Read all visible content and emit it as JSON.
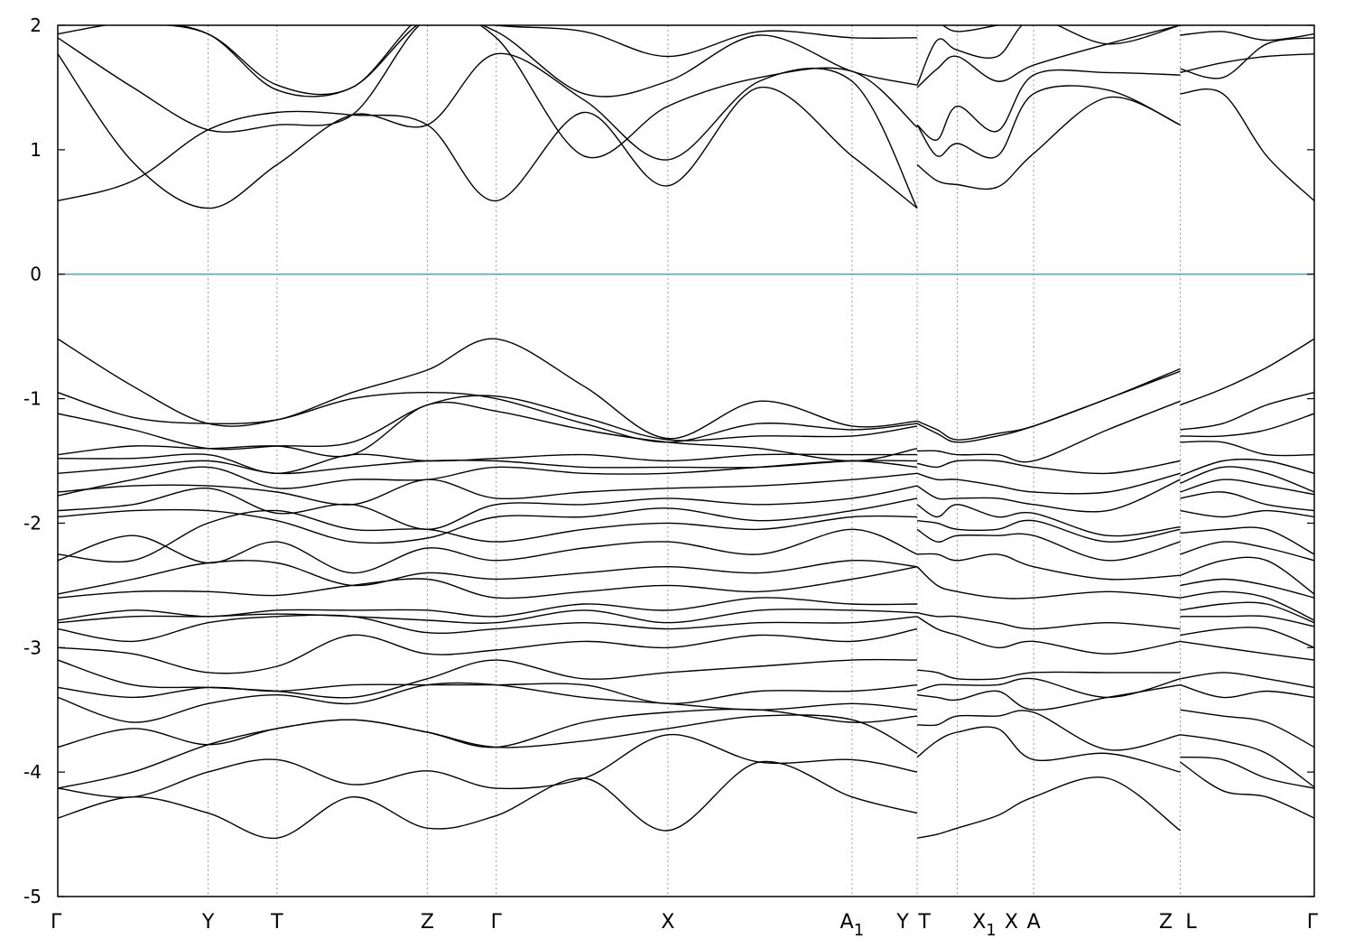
{
  "chart_data": {
    "type": "line",
    "title": "",
    "xlabel": "",
    "ylabel": "",
    "ylim": [
      -5,
      2
    ],
    "y_ticks": [
      -5,
      -4,
      -3,
      -2,
      -1,
      0,
      1,
      2
    ],
    "fermi_level": 0,
    "colors": {
      "bands": "#000000",
      "fermi": "#4fa8c8",
      "kpath": "#9a9a9a"
    },
    "kpoints": [
      {
        "label": "Γ",
        "sub": "",
        "x": 0.0
      },
      {
        "label": "Y",
        "sub": "",
        "x": 1.2
      },
      {
        "label": "T",
        "sub": "",
        "x": 1.75
      },
      {
        "label": "Z",
        "sub": "",
        "x": 2.95
      },
      {
        "label": "Γ",
        "sub": "",
        "x": 3.5
      },
      {
        "label": "X",
        "sub": "",
        "x": 4.87
      },
      {
        "label": "A",
        "sub": "1",
        "x": 6.34
      },
      {
        "label": "Y",
        "sub": "",
        "x": 6.86
      },
      {
        "label": "T",
        "sub": "",
        "x": 6.86
      },
      {
        "label": "X",
        "sub": "1",
        "x": 7.18
      },
      {
        "label": "X",
        "sub": "",
        "x": 7.18
      },
      {
        "label": "A",
        "sub": "",
        "x": 7.79
      },
      {
        "label": "Z",
        "sub": "",
        "x": 8.96
      },
      {
        "label": "L",
        "sub": "",
        "x": 8.96
      },
      {
        "label": "Γ",
        "sub": "",
        "x": 10.03
      }
    ],
    "segments": [
      {
        "name": "Γ-Y-T-Z-Γ-X-A1-Y",
        "x": [
          0.0,
          0.6,
          1.2,
          1.75,
          2.35,
          2.95,
          3.5,
          4.2,
          4.87,
          5.6,
          6.34,
          6.86
        ],
        "bands": [
          [
            -4.37,
            -4.2,
            -4.33,
            -4.53,
            -4.2,
            -4.45,
            -4.35,
            -4.05,
            -4.47,
            -3.92,
            -4.2,
            -4.33
          ],
          [
            -4.13,
            -4.2,
            -4.0,
            -3.9,
            -4.1,
            -3.99,
            -4.13,
            -4.05,
            -3.7,
            -3.92,
            -3.9,
            -4.0
          ],
          [
            -4.13,
            -4.0,
            -3.78,
            -3.65,
            -3.58,
            -3.68,
            -3.8,
            -3.75,
            -3.65,
            -3.55,
            -3.58,
            -3.85
          ],
          [
            -3.8,
            -3.65,
            -3.78,
            -3.65,
            -3.58,
            -3.68,
            -3.8,
            -3.6,
            -3.52,
            -3.5,
            -3.6,
            -3.55
          ],
          [
            -3.4,
            -3.6,
            -3.45,
            -3.38,
            -3.45,
            -3.3,
            -3.3,
            -3.4,
            -3.45,
            -3.5,
            -3.45,
            -3.5
          ],
          [
            -3.32,
            -3.4,
            -3.32,
            -3.35,
            -3.3,
            -3.3,
            -3.3,
            -3.3,
            -3.45,
            -3.35,
            -3.35,
            -3.3
          ],
          [
            -3.1,
            -3.3,
            -3.32,
            -3.35,
            -3.4,
            -3.25,
            -3.1,
            -3.25,
            -3.2,
            -3.15,
            -3.1,
            -3.1
          ],
          [
            -3.0,
            -3.05,
            -3.2,
            -3.15,
            -2.9,
            -3.05,
            -3.02,
            -2.95,
            -3.0,
            -2.9,
            -2.95,
            -2.85
          ],
          [
            -2.85,
            -2.95,
            -2.8,
            -2.75,
            -2.75,
            -2.88,
            -2.85,
            -2.8,
            -2.85,
            -2.8,
            -2.8,
            -2.75
          ],
          [
            -2.8,
            -2.75,
            -2.75,
            -2.73,
            -2.75,
            -2.78,
            -2.8,
            -2.7,
            -2.8,
            -2.7,
            -2.7,
            -2.72
          ],
          [
            -2.78,
            -2.7,
            -2.75,
            -2.7,
            -2.7,
            -2.7,
            -2.75,
            -2.65,
            -2.7,
            -2.6,
            -2.65,
            -2.65
          ],
          [
            -2.6,
            -2.55,
            -2.55,
            -2.58,
            -2.5,
            -2.45,
            -2.6,
            -2.55,
            -2.5,
            -2.55,
            -2.45,
            -2.35
          ],
          [
            -2.57,
            -2.45,
            -2.32,
            -2.32,
            -2.5,
            -2.4,
            -2.45,
            -2.4,
            -2.35,
            -2.4,
            -2.3,
            -2.35
          ],
          [
            -2.3,
            -2.1,
            -2.32,
            -2.15,
            -2.4,
            -2.2,
            -2.3,
            -2.2,
            -2.15,
            -2.25,
            -2.05,
            -2.25
          ],
          [
            -2.25,
            -2.3,
            -2.0,
            -1.9,
            -2.05,
            -2.05,
            -2.15,
            -2.05,
            -2.0,
            -2.05,
            -1.95,
            -1.95
          ],
          [
            -1.95,
            -1.9,
            -1.9,
            -1.98,
            -2.15,
            -2.12,
            -1.95,
            -1.95,
            -1.88,
            -1.98,
            -1.9,
            -1.8
          ],
          [
            -1.9,
            -1.85,
            -1.72,
            -1.92,
            -1.85,
            -2.05,
            -1.85,
            -1.85,
            -1.8,
            -1.85,
            -1.8,
            -1.7
          ],
          [
            -1.75,
            -1.7,
            -1.7,
            -1.75,
            -1.85,
            -1.65,
            -1.8,
            -1.75,
            -1.72,
            -1.7,
            -1.65,
            -1.6
          ],
          [
            -1.78,
            -1.65,
            -1.55,
            -1.72,
            -1.65,
            -1.65,
            -1.55,
            -1.6,
            -1.6,
            -1.55,
            -1.5,
            -1.55
          ],
          [
            -1.6,
            -1.55,
            -1.5,
            -1.6,
            -1.55,
            -1.5,
            -1.5,
            -1.55,
            -1.55,
            -1.55,
            -1.5,
            -1.5
          ],
          [
            -1.48,
            -1.48,
            -1.45,
            -1.6,
            -1.45,
            -1.5,
            -1.48,
            -1.45,
            -1.5,
            -1.45,
            -1.45,
            -1.45
          ],
          [
            -1.45,
            -1.38,
            -1.4,
            -1.38,
            -1.45,
            -1.05,
            -1.1,
            -1.25,
            -1.35,
            -1.4,
            -1.5,
            -1.4
          ],
          [
            -1.12,
            -1.25,
            -1.4,
            -1.38,
            -1.35,
            -1.05,
            -0.98,
            -1.15,
            -1.33,
            -1.3,
            -1.3,
            -1.22
          ],
          [
            -0.95,
            -1.15,
            -1.2,
            -1.17,
            -1.0,
            -0.95,
            -1.0,
            -1.2,
            -1.35,
            -1.2,
            -1.25,
            -1.2
          ],
          [
            -0.52,
            -0.9,
            -1.2,
            -1.17,
            -0.95,
            -0.77,
            -0.52,
            -0.9,
            -1.32,
            -1.02,
            -1.22,
            -1.18
          ],
          [
            0.59,
            0.75,
            1.16,
            1.3,
            1.28,
            1.2,
            0.59,
            1.3,
            0.71,
            1.5,
            0.95,
            0.53
          ],
          [
            1.77,
            0.9,
            0.53,
            0.88,
            1.28,
            1.2,
            1.77,
            1.4,
            0.92,
            1.55,
            1.55,
            0.53
          ],
          [
            1.9,
            1.5,
            1.16,
            1.2,
            1.28,
            2.05,
            1.9,
            0.95,
            1.35,
            1.58,
            1.63,
            1.18
          ],
          [
            1.93,
            2.02,
            1.93,
            1.48,
            1.5,
            2.05,
            1.95,
            1.45,
            1.55,
            1.92,
            1.63,
            1.52
          ],
          [
            2.05,
            2.02,
            1.93,
            1.52,
            1.5,
            2.1,
            2.0,
            1.95,
            1.75,
            1.95,
            1.9,
            1.9
          ]
        ]
      },
      {
        "name": "T-X1|X-A-Z",
        "x": [
          6.86,
          7.02,
          7.18,
          7.5,
          7.79,
          8.38,
          8.96
        ],
        "bands": [
          [
            -4.53,
            -4.5,
            -4.45,
            -4.35,
            -4.2,
            -4.05,
            -4.47
          ],
          [
            -3.88,
            -3.75,
            -3.68,
            -3.65,
            -3.9,
            -3.85,
            -4.0
          ],
          [
            -3.62,
            -3.62,
            -3.55,
            -3.55,
            -3.52,
            -3.82,
            -3.7
          ],
          [
            -3.38,
            -3.4,
            -3.42,
            -3.35,
            -3.5,
            -3.4,
            -3.3
          ],
          [
            -3.35,
            -3.3,
            -3.3,
            -3.3,
            -3.25,
            -3.4,
            -3.25
          ],
          [
            -3.18,
            -3.2,
            -3.25,
            -3.25,
            -3.2,
            -3.2,
            -3.2
          ],
          [
            -2.75,
            -2.85,
            -2.9,
            -3.0,
            -2.95,
            -3.05,
            -2.95
          ],
          [
            -2.72,
            -2.75,
            -2.75,
            -2.8,
            -2.85,
            -2.8,
            -2.85
          ],
          [
            -2.35,
            -2.5,
            -2.55,
            -2.6,
            -2.6,
            -2.55,
            -2.6
          ],
          [
            -2.25,
            -2.25,
            -2.3,
            -2.25,
            -2.35,
            -2.45,
            -2.42
          ],
          [
            -2.05,
            -2.15,
            -2.1,
            -2.1,
            -2.1,
            -2.3,
            -2.15
          ],
          [
            -1.98,
            -2.0,
            -2.05,
            -2.05,
            -1.98,
            -2.15,
            -2.05
          ],
          [
            -1.85,
            -1.95,
            -1.85,
            -1.95,
            -1.92,
            -2.1,
            -2.03
          ],
          [
            -1.7,
            -1.8,
            -1.8,
            -1.8,
            -1.85,
            -1.9,
            -1.65
          ],
          [
            -1.6,
            -1.65,
            -1.65,
            -1.7,
            -1.75,
            -1.75,
            -1.6
          ],
          [
            -1.52,
            -1.55,
            -1.5,
            -1.5,
            -1.55,
            -1.6,
            -1.5
          ],
          [
            -1.42,
            -1.42,
            -1.45,
            -1.45,
            -1.5,
            -1.25,
            -1.02
          ],
          [
            -1.2,
            -1.28,
            -1.35,
            -1.3,
            -1.22,
            -1.0,
            -0.78
          ],
          [
            -1.18,
            -1.25,
            -1.33,
            -1.28,
            -1.22,
            -1.0,
            -0.76
          ],
          [
            0.88,
            0.75,
            0.72,
            0.7,
            0.97,
            1.42,
            1.2
          ],
          [
            1.2,
            0.95,
            1.05,
            0.95,
            1.45,
            1.48,
            1.2
          ],
          [
            1.2,
            1.08,
            1.35,
            1.15,
            1.6,
            1.62,
            1.6
          ],
          [
            1.5,
            1.65,
            1.75,
            1.55,
            1.68,
            1.85,
            2.0
          ],
          [
            1.52,
            1.88,
            1.8,
            1.75,
            2.05,
            1.85,
            2.0
          ],
          [
            2.0,
            2.02,
            1.95,
            2.0,
            2.05,
            2.05,
            2.05
          ]
        ]
      },
      {
        "name": "L-Γ",
        "x": [
          8.96,
          9.3,
          9.65,
          10.03
        ],
        "bands": [
          [
            -3.92,
            -4.15,
            -4.2,
            -4.37
          ],
          [
            -3.88,
            -3.9,
            -4.05,
            -4.13
          ],
          [
            -3.7,
            -3.75,
            -3.85,
            -4.12
          ],
          [
            -3.5,
            -3.55,
            -3.6,
            -3.8
          ],
          [
            -3.3,
            -3.4,
            -3.35,
            -3.4
          ],
          [
            -3.25,
            -3.2,
            -3.25,
            -3.32
          ],
          [
            -2.95,
            -3.0,
            -3.05,
            -3.1
          ],
          [
            -2.9,
            -2.85,
            -2.85,
            -3.0
          ],
          [
            -2.75,
            -2.75,
            -2.75,
            -2.83
          ],
          [
            -2.7,
            -2.65,
            -2.65,
            -2.8
          ],
          [
            -2.6,
            -2.55,
            -2.6,
            -2.78
          ],
          [
            -2.5,
            -2.45,
            -2.5,
            -2.6
          ],
          [
            -2.42,
            -2.3,
            -2.3,
            -2.57
          ],
          [
            -2.25,
            -2.15,
            -2.2,
            -2.3
          ],
          [
            -2.08,
            -2.05,
            -2.05,
            -2.25
          ],
          [
            -1.9,
            -1.95,
            -1.9,
            -1.95
          ],
          [
            -1.8,
            -1.75,
            -1.85,
            -1.9
          ],
          [
            -1.75,
            -1.65,
            -1.7,
            -1.77
          ],
          [
            -1.68,
            -1.55,
            -1.6,
            -1.75
          ],
          [
            -1.62,
            -1.5,
            -1.5,
            -1.6
          ],
          [
            -1.35,
            -1.35,
            -1.45,
            -1.45
          ],
          [
            -1.3,
            -1.3,
            -1.25,
            -1.12
          ],
          [
            -1.25,
            -1.2,
            -1.05,
            -0.95
          ],
          [
            -1.05,
            -0.92,
            -0.75,
            -0.52
          ],
          [
            1.45,
            1.45,
            0.95,
            0.59
          ],
          [
            1.62,
            1.7,
            1.75,
            1.77
          ],
          [
            1.65,
            1.58,
            1.85,
            1.9
          ],
          [
            1.92,
            1.95,
            1.88,
            1.93
          ],
          [
            2.05,
            2.05,
            2.0,
            2.05
          ]
        ]
      }
    ]
  }
}
